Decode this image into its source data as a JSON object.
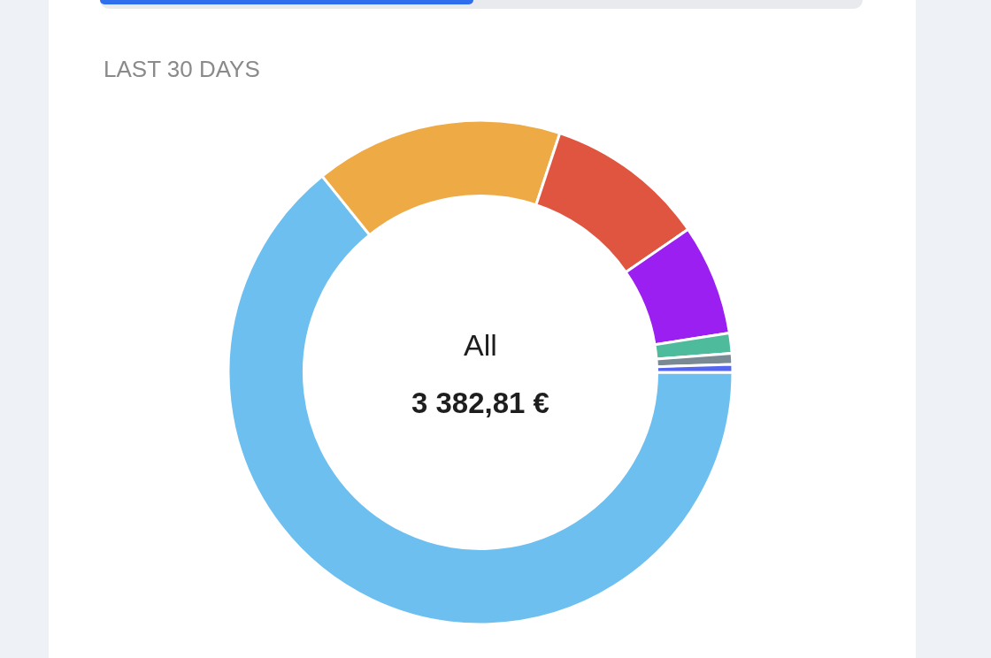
{
  "chart_data": {
    "type": "donut",
    "title": "LAST 30 DAYS",
    "categories": [
      null,
      null,
      null,
      null,
      null,
      null,
      null
    ],
    "values": [
      64.2,
      15.9,
      10.3,
      7.1,
      1.3,
      0.7,
      0.5
    ],
    "colors": [
      "#6dbff0",
      "#eeaa45",
      "#e05540",
      "#9b1ff0",
      "#4dbb9c",
      "#7a8a94",
      "#5566ee"
    ],
    "annotations": [
      "All",
      "3 382,81 €"
    ],
    "legend": false
  }
}
